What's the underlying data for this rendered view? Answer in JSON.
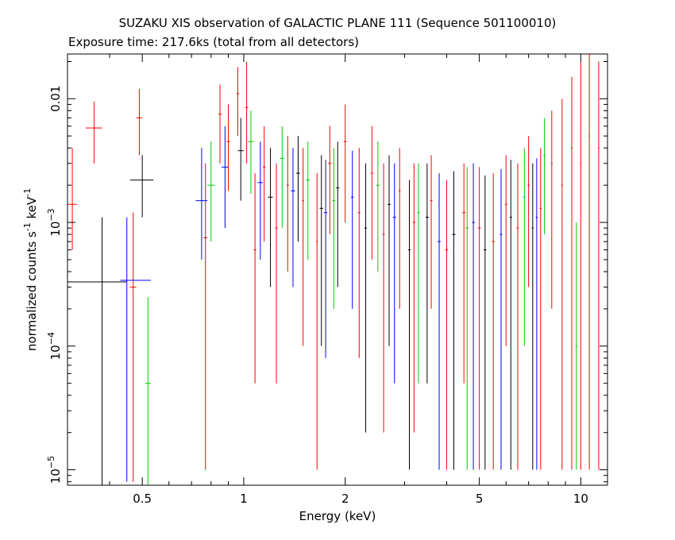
{
  "title": "SUZAKU XIS observation of GALACTIC PLANE 111 (Sequence 501100010)",
  "subtitle": "Exposure time: 217.6ks (total from all detectors)",
  "chart_data": {
    "type": "scatter",
    "title": "SUZAKU XIS observation of GALACTIC PLANE 111 (Sequence 501100010)",
    "subtitle": "Exposure time: 217.6ks (total from all detectors)",
    "xlabel": "Energy (keV)",
    "ylabel_parts": [
      "normalized counts s",
      "-1",
      " keV",
      "-1"
    ],
    "x_scale": "log",
    "y_scale": "log",
    "xlim": [
      0.3,
      12
    ],
    "ylim": [
      7.5e-06,
      0.023
    ],
    "x_ticks": [
      {
        "value": 0.5,
        "label": "0.5"
      },
      {
        "value": 1,
        "label": "1"
      },
      {
        "value": 2,
        "label": "2"
      },
      {
        "value": 5,
        "label": "5"
      },
      {
        "value": 10,
        "label": "10"
      }
    ],
    "y_ticks": [
      {
        "value": 0.01,
        "label": "0.01"
      },
      {
        "value": 0.001,
        "label": "10",
        "exp": "−3"
      },
      {
        "value": 0.0001,
        "label": "10",
        "exp": "−4"
      },
      {
        "value": 1e-05,
        "label": "10",
        "exp": "−5"
      }
    ],
    "grid": false,
    "series": [
      {
        "color": "#ff0000",
        "points": [
          [
            0.31,
            0.0014,
            0.3,
            0.32,
            0.0006,
            0.004
          ],
          [
            0.36,
            0.0058,
            0.34,
            0.38,
            0.003,
            0.0095
          ],
          [
            0.47,
            0.0003,
            0.46,
            0.48,
            8e-06,
            0.0012
          ],
          [
            0.49,
            0.007,
            0.48,
            0.5,
            0.0035,
            0.012
          ],
          [
            0.77,
            0.00075,
            0.76,
            0.78,
            1e-05,
            0.003
          ],
          [
            0.85,
            0.0075,
            0.84,
            0.86,
            0.003,
            0.013
          ],
          [
            0.9,
            0.0045,
            0.89,
            0.91,
            0.0018,
            0.009
          ],
          [
            0.96,
            0.011,
            0.95,
            0.97,
            0.005,
            0.018
          ],
          [
            1.02,
            0.0085,
            1.01,
            1.03,
            0.003,
            0.02
          ],
          [
            1.08,
            0.0006,
            1.07,
            1.09,
            5e-05,
            0.0025
          ],
          [
            1.15,
            0.0028,
            1.14,
            1.16,
            0.0007,
            0.006
          ],
          [
            1.25,
            0.0009,
            1.24,
            1.26,
            5e-05,
            0.003
          ],
          [
            1.35,
            0.002,
            1.34,
            1.36,
            0.0004,
            0.005
          ],
          [
            1.5,
            0.0015,
            1.49,
            1.51,
            0.0001,
            0.004
          ],
          [
            1.65,
            0.0007,
            1.64,
            1.66,
            1e-05,
            0.0025
          ],
          [
            1.8,
            0.003,
            1.78,
            1.82,
            0.0008,
            0.006
          ],
          [
            2.0,
            0.0045,
            1.98,
            2.02,
            0.001,
            0.009
          ],
          [
            2.2,
            0.0012,
            2.18,
            2.22,
            8e-05,
            0.004
          ],
          [
            2.4,
            0.0025,
            2.38,
            2.42,
            0.0005,
            0.006
          ],
          [
            2.6,
            0.0008,
            2.58,
            2.62,
            2e-05,
            0.003
          ],
          [
            2.9,
            0.0018,
            2.88,
            2.92,
            0.0002,
            0.004
          ],
          [
            3.2,
            0.001,
            3.17,
            3.23,
            2e-05,
            0.003
          ],
          [
            3.6,
            0.0015,
            3.57,
            3.63,
            0.0002,
            0.0035
          ],
          [
            4.0,
            0.0006,
            3.96,
            4.04,
            1e-05,
            0.0022
          ],
          [
            4.5,
            0.0012,
            4.45,
            4.55,
            5e-05,
            0.003
          ],
          [
            5.0,
            0.0009,
            4.95,
            5.05,
            1e-05,
            0.0028
          ],
          [
            5.5,
            0.0007,
            5.45,
            5.55,
            1e-05,
            0.0025
          ],
          [
            6.0,
            0.0014,
            5.95,
            6.05,
            0.0001,
            0.0035
          ],
          [
            6.5,
            0.0009,
            6.45,
            6.55,
            1e-05,
            0.003
          ],
          [
            7.0,
            0.002,
            6.95,
            7.05,
            0.0003,
            0.005
          ],
          [
            7.6,
            0.0013,
            7.55,
            7.65,
            1e-05,
            0.004
          ],
          [
            8.2,
            0.003,
            8.15,
            8.25,
            0.0002,
            0.008
          ],
          [
            8.8,
            0.002,
            8.75,
            8.85,
            1e-05,
            0.01
          ],
          [
            9.4,
            0.004,
            9.35,
            9.45,
            1e-05,
            0.015
          ],
          [
            10.0,
            0.003,
            9.95,
            10.05,
            1e-05,
            0.02
          ],
          [
            10.6,
            0.005,
            10.55,
            10.65,
            1e-05,
            0.023
          ],
          [
            11.3,
            0.004,
            11.25,
            11.35,
            1e-05,
            0.02
          ]
        ]
      },
      {
        "color": "#000000",
        "points": [
          [
            0.38,
            0.00033,
            0.3,
            0.45,
            7.5e-06,
            0.0011
          ],
          [
            0.5,
            0.0022,
            0.46,
            0.54,
            0.0011,
            0.0035
          ],
          [
            0.98,
            0.0038,
            0.96,
            1.0,
            0.0015,
            0.007
          ],
          [
            1.2,
            0.0016,
            1.18,
            1.22,
            0.0003,
            0.004
          ],
          [
            1.45,
            0.0025,
            1.43,
            1.47,
            0.0007,
            0.005
          ],
          [
            1.7,
            0.0013,
            1.68,
            1.72,
            0.0001,
            0.0035
          ],
          [
            1.9,
            0.0019,
            1.88,
            1.92,
            0.0003,
            0.0045
          ],
          [
            2.3,
            0.0009,
            2.28,
            2.32,
            2e-05,
            0.003
          ],
          [
            2.7,
            0.0014,
            2.67,
            2.73,
            0.0001,
            0.0035
          ],
          [
            3.1,
            0.0006,
            3.07,
            3.13,
            1e-05,
            0.0022
          ],
          [
            3.5,
            0.0011,
            3.46,
            3.54,
            5e-05,
            0.003
          ],
          [
            4.2,
            0.0008,
            4.15,
            4.25,
            1e-05,
            0.0026
          ],
          [
            5.2,
            0.0006,
            5.15,
            5.25,
            1e-05,
            0.0024
          ],
          [
            6.2,
            0.0011,
            6.15,
            6.25,
            1e-05,
            0.0032
          ],
          [
            7.2,
            0.0009,
            7.15,
            7.25,
            1e-05,
            0.003
          ]
        ]
      },
      {
        "color": "#00cc00",
        "points": [
          [
            0.52,
            5e-05,
            0.51,
            0.53,
            7.5e-06,
            0.00025
          ],
          [
            0.8,
            0.002,
            0.78,
            0.82,
            0.0007,
            0.0045
          ],
          [
            1.05,
            0.0045,
            1.03,
            1.07,
            0.0017,
            0.008
          ],
          [
            1.3,
            0.0033,
            1.28,
            1.32,
            0.0009,
            0.006
          ],
          [
            1.55,
            0.0022,
            1.53,
            1.57,
            0.0005,
            0.0045
          ],
          [
            1.85,
            0.0015,
            1.83,
            1.87,
            0.0002,
            0.004
          ],
          [
            2.5,
            0.002,
            2.47,
            2.53,
            0.0004,
            0.0045
          ],
          [
            3.3,
            0.0012,
            3.27,
            3.33,
            5e-05,
            0.003
          ],
          [
            4.6,
            0.0009,
            4.55,
            4.65,
            1e-05,
            0.0028
          ],
          [
            6.8,
            0.0016,
            6.75,
            6.85,
            0.0001,
            0.004
          ],
          [
            7.8,
            0.0035,
            7.75,
            7.85,
            0.0008,
            0.007
          ],
          [
            9.7,
            0.0001,
            9.65,
            9.75,
            1e-05,
            0.001
          ]
        ]
      },
      {
        "color": "#0000ff",
        "points": [
          [
            0.45,
            0.00034,
            0.43,
            0.53,
            8e-06,
            0.0011
          ],
          [
            0.75,
            0.0015,
            0.72,
            0.78,
            0.0005,
            0.004
          ],
          [
            0.88,
            0.0028,
            0.86,
            0.9,
            0.0009,
            0.006
          ],
          [
            1.12,
            0.0021,
            1.1,
            1.14,
            0.0005,
            0.0045
          ],
          [
            1.4,
            0.0018,
            1.38,
            1.42,
            0.0003,
            0.004
          ],
          [
            1.75,
            0.0012,
            1.73,
            1.77,
            8e-05,
            0.0032
          ],
          [
            2.1,
            0.0016,
            2.08,
            2.12,
            0.0002,
            0.0038
          ],
          [
            2.8,
            0.0011,
            2.77,
            2.83,
            5e-05,
            0.003
          ],
          [
            3.8,
            0.0007,
            3.76,
            3.84,
            1e-05,
            0.0025
          ],
          [
            4.8,
            0.001,
            4.75,
            4.85,
            1e-05,
            0.003
          ],
          [
            5.8,
            0.0008,
            5.75,
            5.85,
            1e-05,
            0.0027
          ],
          [
            7.4,
            0.0011,
            7.35,
            7.45,
            1e-05,
            0.0033
          ]
        ]
      }
    ]
  }
}
